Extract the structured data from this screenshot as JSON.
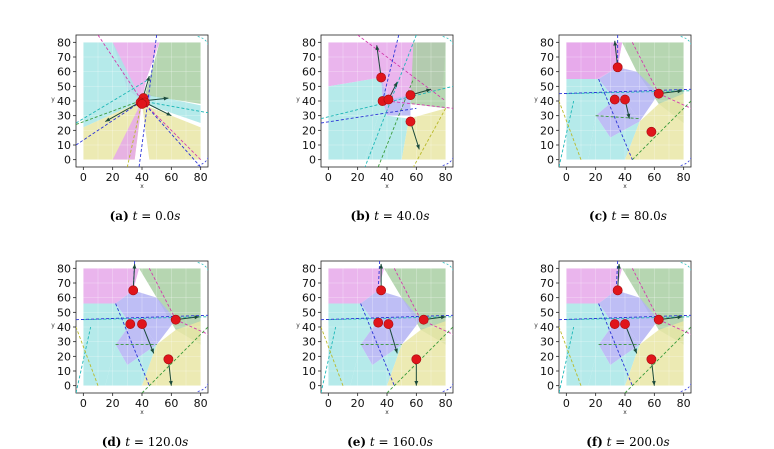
{
  "axes": {
    "xlabel": "x",
    "ylabel": "y",
    "xticks": [
      "0",
      "20",
      "40",
      "60",
      "80"
    ],
    "yticks": [
      "0",
      "10",
      "20",
      "30",
      "40",
      "50",
      "60",
      "70",
      "80"
    ],
    "xlim": [
      -5,
      85
    ],
    "ylim": [
      -5,
      85
    ]
  },
  "colors": {
    "magenta": "#e6a8ea",
    "cyan": "#a8e6e6",
    "green": "#a9cfa3",
    "yellow": "#e9e6a6",
    "blue": "#b3b3f3",
    "robot": "#e0151b",
    "arrow": "#1b4a3a",
    "dash_magenta": "#d23cae",
    "dash_cyan": "#1eb7b7",
    "dash_green": "#3a9a3a",
    "dash_yellow": "#b9b92a",
    "dash_blue": "#2a34d6"
  },
  "panels": [
    {
      "label": "(a)",
      "time": "0.0",
      "caption_mid": " t = ",
      "unit": "s"
    },
    {
      "label": "(b)",
      "time": "40.0",
      "caption_mid": " t = ",
      "unit": "s"
    },
    {
      "label": "(c)",
      "time": "80.0",
      "caption_mid": " t = ",
      "unit": "s"
    },
    {
      "label": "(d)",
      "time": "120.0",
      "caption_mid": " t = ",
      "unit": "s"
    },
    {
      "label": "(e)",
      "time": "160.0",
      "caption_mid": " t = ",
      "unit": "s"
    },
    {
      "label": "(f)",
      "time": "200.0",
      "caption_mid": " t = ",
      "unit": "s"
    }
  ],
  "chart_data": [
    {
      "type": "scatter",
      "title": "(a) t = 0.0s",
      "xlabel": "x",
      "ylabel": "y",
      "xlim": [
        -5,
        85
      ],
      "ylim": [
        -5,
        85
      ],
      "robots": [
        [
          40,
          40
        ],
        [
          41,
          42
        ],
        [
          39,
          39
        ],
        [
          42,
          39
        ],
        [
          40,
          38
        ]
      ],
      "arrows": [
        [
          [
            40,
            40
          ],
          [
            45,
            57
          ]
        ],
        [
          [
            40,
            40
          ],
          [
            58,
            42
          ]
        ],
        [
          [
            40,
            40
          ],
          [
            60,
            30
          ]
        ],
        [
          [
            40,
            40
          ],
          [
            15,
            26
          ]
        ]
      ]
    },
    {
      "type": "scatter",
      "title": "(b) t = 40.0s",
      "xlabel": "x",
      "ylabel": "y",
      "xlim": [
        -5,
        85
      ],
      "ylim": [
        -5,
        85
      ],
      "robots": [
        [
          36,
          56
        ],
        [
          37,
          40
        ],
        [
          41,
          41
        ],
        [
          56,
          44
        ],
        [
          56,
          26
        ]
      ],
      "arrows": [
        [
          [
            36,
            56
          ],
          [
            33,
            78
          ]
        ],
        [
          [
            41,
            41
          ],
          [
            47,
            53
          ]
        ],
        [
          [
            56,
            44
          ],
          [
            70,
            48
          ]
        ],
        [
          [
            56,
            26
          ],
          [
            62,
            7
          ]
        ]
      ]
    },
    {
      "type": "scatter",
      "title": "(c) t = 80.0s",
      "xlabel": "x",
      "ylabel": "y",
      "xlim": [
        -5,
        85
      ],
      "ylim": [
        -5,
        85
      ],
      "robots": [
        [
          35,
          63
        ],
        [
          33,
          41
        ],
        [
          40,
          41
        ],
        [
          63,
          45
        ],
        [
          58,
          19
        ]
      ],
      "arrows": [
        [
          [
            35,
            63
          ],
          [
            33,
            81
          ]
        ],
        [
          [
            63,
            45
          ],
          [
            79,
            47
          ]
        ],
        [
          [
            40,
            41
          ],
          [
            43,
            28
          ]
        ]
      ]
    },
    {
      "type": "scatter",
      "title": "(d) t = 120.0s",
      "xlabel": "x",
      "ylabel": "y",
      "xlim": [
        -5,
        85
      ],
      "ylim": [
        -5,
        85
      ],
      "robots": [
        [
          34,
          65
        ],
        [
          32,
          42
        ],
        [
          40,
          42
        ],
        [
          63,
          45
        ],
        [
          58,
          18
        ]
      ],
      "arrows": [
        [
          [
            34,
            65
          ],
          [
            35,
            83
          ]
        ],
        [
          [
            63,
            45
          ],
          [
            79,
            47
          ]
        ],
        [
          [
            40,
            42
          ],
          [
            48,
            22
          ]
        ],
        [
          [
            58,
            18
          ],
          [
            60,
            0
          ]
        ]
      ]
    },
    {
      "type": "scatter",
      "title": "(e) t = 160.0s",
      "xlabel": "x",
      "ylabel": "y",
      "xlim": [
        -5,
        85
      ],
      "ylim": [
        -5,
        85
      ],
      "robots": [
        [
          36,
          65
        ],
        [
          34,
          43
        ],
        [
          41,
          42
        ],
        [
          65,
          45
        ],
        [
          60,
          18
        ]
      ],
      "arrows": [
        [
          [
            36,
            65
          ],
          [
            36,
            83
          ]
        ],
        [
          [
            65,
            45
          ],
          [
            80,
            47
          ]
        ],
        [
          [
            41,
            42
          ],
          [
            47,
            22
          ]
        ],
        [
          [
            60,
            18
          ],
          [
            60,
            0
          ]
        ]
      ]
    },
    {
      "type": "scatter",
      "title": "(f) t = 200.0s",
      "xlabel": "x",
      "ylabel": "y",
      "xlim": [
        -5,
        85
      ],
      "ylim": [
        -5,
        85
      ],
      "robots": [
        [
          35,
          65
        ],
        [
          33,
          42
        ],
        [
          40,
          42
        ],
        [
          63,
          45
        ],
        [
          58,
          18
        ]
      ],
      "arrows": [
        [
          [
            35,
            65
          ],
          [
            36,
            83
          ]
        ],
        [
          [
            63,
            45
          ],
          [
            79,
            47
          ]
        ],
        [
          [
            40,
            42
          ],
          [
            48,
            22
          ]
        ],
        [
          [
            58,
            18
          ],
          [
            60,
            0
          ]
        ]
      ]
    }
  ]
}
